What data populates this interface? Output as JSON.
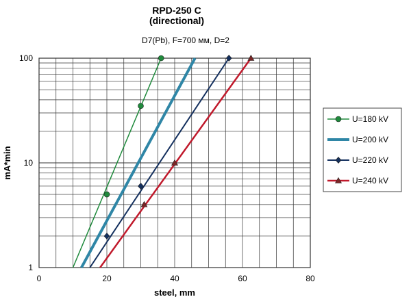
{
  "chart_data": {
    "type": "line",
    "title": "RPD-250 C",
    "title_line2": "(directional)",
    "subtitle": "D7(Pb),  F=700 мм,  D=2",
    "xlabel": "steel, mm",
    "ylabel": "mA*min",
    "xlim": [
      0,
      80
    ],
    "ylim": [
      1,
      100
    ],
    "y_scale": "log",
    "x_ticks": [
      "0",
      "20",
      "40",
      "60",
      "80"
    ],
    "y_ticks": [
      "1",
      "10",
      "100"
    ],
    "grid": true,
    "legend_position": "right",
    "series": [
      {
        "name": "U=180 kV",
        "color": "#1f8a3c",
        "marker": "circle",
        "line_width": 1.5,
        "line": [
          [
            10,
            1
          ],
          [
            36,
            100
          ]
        ],
        "points": [
          [
            20,
            5
          ],
          [
            30,
            35
          ],
          [
            36,
            100
          ]
        ]
      },
      {
        "name": "U=200 kV",
        "color": "#2f86a6",
        "marker": "none",
        "line_width": 4,
        "line": [
          [
            12.5,
            1
          ],
          [
            46,
            100
          ]
        ],
        "points": []
      },
      {
        "name": "U=220 kV",
        "color": "#14305e",
        "marker": "diamond",
        "line_width": 2,
        "line": [
          [
            15,
            1
          ],
          [
            56,
            100
          ]
        ],
        "points": [
          [
            20,
            2
          ],
          [
            30,
            6
          ],
          [
            56,
            100
          ]
        ]
      },
      {
        "name": "U=240 kV",
        "color": "#c0192b",
        "marker": "triangle",
        "line_width": 2.5,
        "line": [
          [
            18,
            1
          ],
          [
            62.5,
            100
          ]
        ],
        "points": [
          [
            31,
            4
          ],
          [
            40,
            10
          ],
          [
            62.5,
            100
          ]
        ]
      }
    ]
  }
}
